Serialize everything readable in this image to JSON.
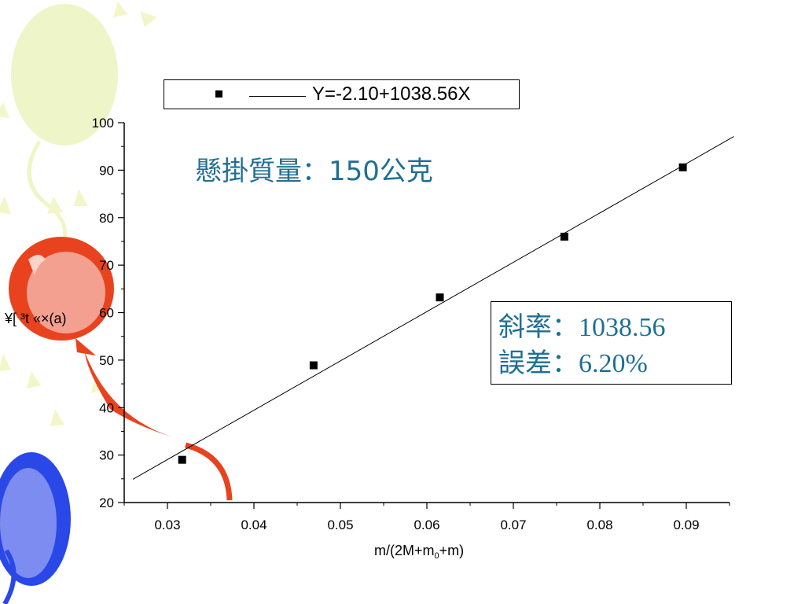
{
  "chart_data": {
    "type": "scatter",
    "title": "懸掛質量：150公克",
    "xlabel": "m/(2M+m",
    "xlabel_subscript": "0",
    "xlabel_suffix": "+m)",
    "ylabel": "¥[ ³t «×(a)",
    "xlim": [
      0.025,
      0.095
    ],
    "ylim": [
      20,
      100
    ],
    "x_ticks": [
      "0.03",
      "0.04",
      "0.05",
      "0.06",
      "0.07",
      "0.08",
      "0.09"
    ],
    "y_ticks": [
      "20",
      "30",
      "40",
      "50",
      "60",
      "70",
      "80",
      "90",
      "100"
    ],
    "grid": false,
    "legend_position": "top",
    "series": [
      {
        "name": "Y=-2.10+1038.56X",
        "marker": "square",
        "points": [
          {
            "x": 0.0317,
            "y": 29.0
          },
          {
            "x": 0.0469,
            "y": 48.9
          },
          {
            "x": 0.0615,
            "y": 63.2
          },
          {
            "x": 0.0759,
            "y": 76.0
          },
          {
            "x": 0.0896,
            "y": 90.6
          }
        ]
      }
    ],
    "fit": {
      "intercept": -2.1,
      "slope": 1038.56,
      "x_range": [
        0.026,
        0.0955
      ]
    },
    "legend_label": "Y=-2.10+1038.56X",
    "annotation_slope": "斜率：1038.56",
    "annotation_error": "誤差：6.20%",
    "colors": {
      "annotation": "#1f6f94",
      "marks": "#000000"
    }
  },
  "decor": {
    "balloon_colors": [
      "#eef5c8",
      "#e8431e",
      "#f4a090",
      "#2a48e8",
      "#7c8cf0"
    ]
  }
}
